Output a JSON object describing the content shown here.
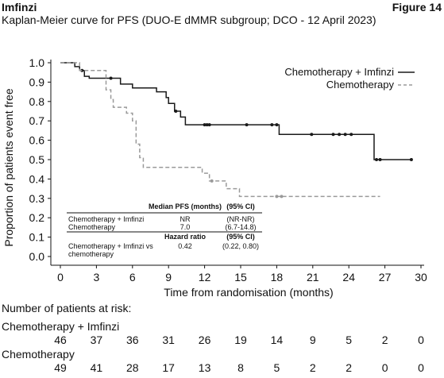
{
  "header": {
    "left": "Imfinzi",
    "right": "Figure 14"
  },
  "chart_data": {
    "type": "line",
    "title": "Kaplan-Meier curve for PFS (DUO-E dMMR subgroup; DCO - 12 April 2023)",
    "xlabel": "Time from randomisation (months)",
    "ylabel": "Proportion of patients event free",
    "xlim": [
      0,
      30
    ],
    "ylim": [
      0,
      1
    ],
    "xticks": [
      "0",
      "3",
      "6",
      "9",
      "12",
      "15",
      "18",
      "21",
      "24",
      "27",
      "30"
    ],
    "yticks": [
      "0.0",
      "0.1",
      "0.2",
      "0.3",
      "0.4",
      "0.5",
      "0.6",
      "0.7",
      "0.8",
      "0.9",
      "1.0"
    ],
    "legend_position": "top-right",
    "series": [
      {
        "name": "Chemotherapy + Imfinzi",
        "color": "#1a1a1a",
        "dash": false,
        "steps": [
          [
            0,
            1.0
          ],
          [
            0.8,
            1.0
          ],
          [
            1.2,
            0.98
          ],
          [
            1.6,
            0.96
          ],
          [
            2.0,
            0.93
          ],
          [
            2.4,
            0.92
          ],
          [
            4.0,
            0.92
          ],
          [
            5.0,
            0.89
          ],
          [
            6.0,
            0.87
          ],
          [
            8.0,
            0.85
          ],
          [
            8.8,
            0.82
          ],
          [
            9.0,
            0.79
          ],
          [
            9.5,
            0.75
          ],
          [
            10.0,
            0.72
          ],
          [
            10.4,
            0.68
          ],
          [
            17.8,
            0.68
          ],
          [
            18.2,
            0.63
          ],
          [
            25.8,
            0.63
          ],
          [
            26.1,
            0.5
          ],
          [
            29.3,
            0.5
          ]
        ],
        "censored": [
          [
            1.8,
            0.96
          ],
          [
            4.2,
            0.92
          ],
          [
            9.6,
            0.75
          ],
          [
            12.0,
            0.68
          ],
          [
            12.2,
            0.68
          ],
          [
            12.4,
            0.68
          ],
          [
            15.5,
            0.68
          ],
          [
            17.6,
            0.68
          ],
          [
            18.0,
            0.68
          ],
          [
            20.9,
            0.63
          ],
          [
            22.7,
            0.63
          ],
          [
            23.2,
            0.63
          ],
          [
            23.7,
            0.63
          ],
          [
            24.2,
            0.63
          ],
          [
            26.3,
            0.5
          ],
          [
            26.6,
            0.5
          ],
          [
            29.2,
            0.5
          ]
        ]
      },
      {
        "name": "Chemotherapy",
        "color": "#9a9a9a",
        "dash": true,
        "steps": [
          [
            0,
            1.0
          ],
          [
            1.3,
            1.0
          ],
          [
            1.6,
            0.96
          ],
          [
            3.5,
            0.96
          ],
          [
            3.8,
            0.86
          ],
          [
            4.2,
            0.81
          ],
          [
            4.4,
            0.77
          ],
          [
            5.2,
            0.77
          ],
          [
            5.5,
            0.74
          ],
          [
            6.0,
            0.7
          ],
          [
            6.3,
            0.58
          ],
          [
            6.6,
            0.51
          ],
          [
            6.9,
            0.46
          ],
          [
            11.6,
            0.46
          ],
          [
            11.8,
            0.43
          ],
          [
            12.4,
            0.39
          ],
          [
            13.4,
            0.39
          ],
          [
            13.8,
            0.35
          ],
          [
            14.6,
            0.35
          ],
          [
            14.9,
            0.31
          ],
          [
            26.6,
            0.31
          ]
        ],
        "censored": [
          [
            12.6,
            0.39
          ],
          [
            18.0,
            0.31
          ],
          [
            18.4,
            0.31
          ]
        ]
      }
    ],
    "inset_table": {
      "median_header": "Median PFS (months)",
      "ci_header": "(95% CI)",
      "rows": [
        {
          "label": "Chemotherapy + Imfinzi",
          "value": "NR",
          "ci": "(NR-NR)"
        },
        {
          "label": "Chemotherapy",
          "value": "7.0",
          "ci": "(6.7-14.8)"
        }
      ],
      "hr_header": "Hazard ratio",
      "hr_ci_header": "(95% CI)",
      "hr_row": {
        "label_line1": "Chemotherapy + Imfinzi vs",
        "label_line2": "chemotherapy",
        "value": "0.42",
        "ci": "(0.22, 0.80)"
      }
    }
  },
  "risk_table": {
    "title": "Number of patients at risk:",
    "timepoints": [
      0,
      3,
      6,
      9,
      12,
      15,
      18,
      21,
      24,
      27,
      30
    ],
    "rows": [
      {
        "label": "Chemotherapy + Imfinzi",
        "values": [
          "46",
          "37",
          "36",
          "31",
          "26",
          "19",
          "14",
          "9",
          "5",
          "2",
          "0"
        ]
      },
      {
        "label": "Chemotherapy",
        "values": [
          "49",
          "41",
          "28",
          "17",
          "13",
          "8",
          "5",
          "2",
          "2",
          "0",
          "0"
        ]
      }
    ]
  }
}
